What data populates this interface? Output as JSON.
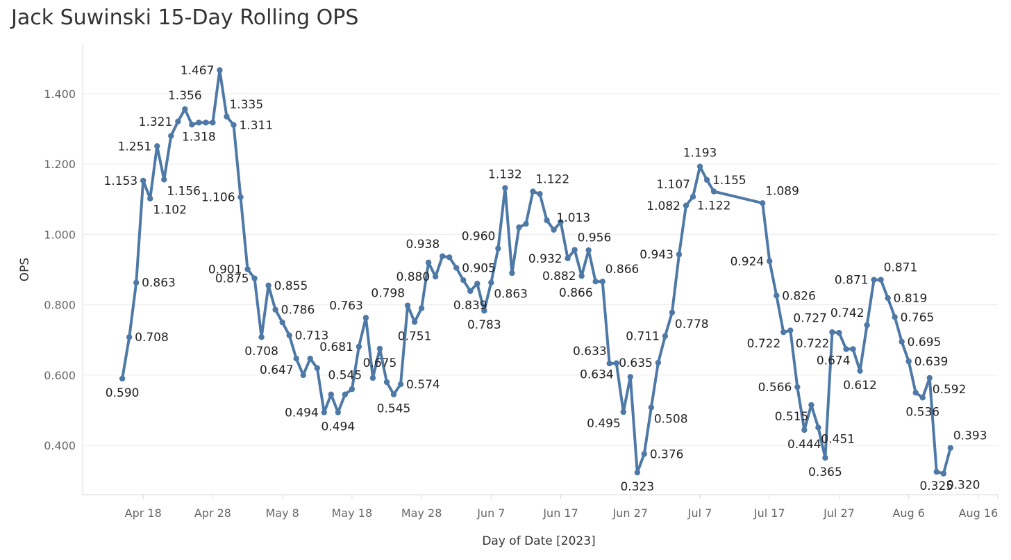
{
  "chart_data": {
    "type": "line",
    "title": "Jack Suwinski 15-Day Rolling OPS",
    "xlabel": "Day of Date [2023]",
    "ylabel": "OPS",
    "ylim": [
      0.26,
      1.54
    ],
    "y_ticks": [
      0.4,
      0.6,
      0.8,
      1.0,
      1.2,
      1.4
    ],
    "y_tick_labels": [
      "0.400",
      "0.600",
      "0.800",
      "1.000",
      "1.200",
      "1.400"
    ],
    "x_ticks": [
      {
        "day": 18,
        "label": "Apr 18"
      },
      {
        "day": 28,
        "label": "Apr 28"
      },
      {
        "day": 38,
        "label": "May 8"
      },
      {
        "day": 48,
        "label": "May 18"
      },
      {
        "day": 58,
        "label": "May 28"
      },
      {
        "day": 68,
        "label": "Jun 7"
      },
      {
        "day": 78,
        "label": "Jun 17"
      },
      {
        "day": 88,
        "label": "Jun 27"
      },
      {
        "day": 98,
        "label": "Jul 7"
      },
      {
        "day": 108,
        "label": "Jul 17"
      },
      {
        "day": 118,
        "label": "Jul 27"
      },
      {
        "day": 128,
        "label": "Aug 6"
      },
      {
        "day": 138,
        "label": "Aug 16"
      }
    ],
    "xlim": [
      9.3,
      140.8
    ],
    "line_color": "#4e79a7",
    "grid": true,
    "series": [
      {
        "name": "OPS",
        "points": [
          {
            "d": 15,
            "v": 0.59,
            "label": "0.590",
            "pos": "below"
          },
          {
            "d": 16,
            "v": 0.708,
            "label": "0.708",
            "pos": "right"
          },
          {
            "d": 17,
            "v": 0.863,
            "label": "0.863",
            "pos": "right"
          },
          {
            "d": 18,
            "v": 1.153,
            "label": "1.153",
            "pos": "left"
          },
          {
            "d": 19,
            "v": 1.102,
            "label": "1.102",
            "pos": "belowright"
          },
          {
            "d": 20,
            "v": 1.251,
            "label": "1.251",
            "pos": "left"
          },
          {
            "d": 21,
            "v": 1.156,
            "label": "1.156",
            "pos": "belowright"
          },
          {
            "d": 22,
            "v": 1.28
          },
          {
            "d": 23,
            "v": 1.321,
            "label": "1.321",
            "pos": "left"
          },
          {
            "d": 24,
            "v": 1.356,
            "label": "1.356",
            "pos": "above"
          },
          {
            "d": 25,
            "v": 1.312
          },
          {
            "d": 26,
            "v": 1.318,
            "label": "1.318",
            "pos": "below"
          },
          {
            "d": 27,
            "v": 1.318
          },
          {
            "d": 28,
            "v": 1.318
          },
          {
            "d": 29,
            "v": 1.467,
            "label": "1.467",
            "pos": "left"
          },
          {
            "d": 30,
            "v": 1.335,
            "label": "1.335",
            "pos": "aboveright"
          },
          {
            "d": 31,
            "v": 1.311,
            "label": "1.311",
            "pos": "right"
          },
          {
            "d": 32,
            "v": 1.106,
            "label": "1.106",
            "pos": "left"
          },
          {
            "d": 33,
            "v": 0.901,
            "label": "0.901",
            "pos": "left"
          },
          {
            "d": 34,
            "v": 0.875,
            "label": "0.875",
            "pos": "left"
          },
          {
            "d": 35,
            "v": 0.708,
            "label": "0.708",
            "pos": "below"
          },
          {
            "d": 36,
            "v": 0.855,
            "label": "0.855",
            "pos": "right"
          },
          {
            "d": 37,
            "v": 0.786,
            "label": "0.786",
            "pos": "right"
          },
          {
            "d": 38,
            "v": 0.75
          },
          {
            "d": 39,
            "v": 0.713,
            "label": "0.713",
            "pos": "right"
          },
          {
            "d": 40,
            "v": 0.647,
            "label": "0.647",
            "pos": "belowleft"
          },
          {
            "d": 41,
            "v": 0.6
          },
          {
            "d": 42,
            "v": 0.647
          },
          {
            "d": 43,
            "v": 0.62
          },
          {
            "d": 44,
            "v": 0.494,
            "label": "0.494",
            "pos": "left"
          },
          {
            "d": 45,
            "v": 0.545
          },
          {
            "d": 46,
            "v": 0.494,
            "label": "0.494",
            "pos": "below"
          },
          {
            "d": 47,
            "v": 0.545,
            "label": "0.545",
            "pos": "abovegap"
          },
          {
            "d": 48,
            "v": 0.56
          },
          {
            "d": 49,
            "v": 0.681,
            "label": "0.681",
            "pos": "left"
          },
          {
            "d": 50,
            "v": 0.763,
            "label": "0.763",
            "pos": "aboveleft"
          },
          {
            "d": 51,
            "v": 0.592
          },
          {
            "d": 52,
            "v": 0.675,
            "label": "0.675",
            "pos": "below"
          },
          {
            "d": 53,
            "v": 0.58
          },
          {
            "d": 54,
            "v": 0.545,
            "label": "0.545",
            "pos": "below"
          },
          {
            "d": 55,
            "v": 0.574,
            "label": "0.574",
            "pos": "right"
          },
          {
            "d": 56,
            "v": 0.798,
            "label": "0.798",
            "pos": "aboveleft"
          },
          {
            "d": 57,
            "v": 0.751,
            "label": "0.751",
            "pos": "below"
          },
          {
            "d": 58,
            "v": 0.79
          },
          {
            "d": 59,
            "v": 0.92
          },
          {
            "d": 60,
            "v": 0.88,
            "label": "0.880",
            "pos": "left"
          },
          {
            "d": 61,
            "v": 0.938,
            "label": "0.938",
            "pos": "aboveleft"
          },
          {
            "d": 62,
            "v": 0.935
          },
          {
            "d": 63,
            "v": 0.905,
            "label": "0.905",
            "pos": "right"
          },
          {
            "d": 64,
            "v": 0.87
          },
          {
            "d": 65,
            "v": 0.839,
            "label": "0.839",
            "pos": "below"
          },
          {
            "d": 66,
            "v": 0.86
          },
          {
            "d": 67,
            "v": 0.783,
            "label": "0.783",
            "pos": "below"
          },
          {
            "d": 68,
            "v": 0.863,
            "label": "0.863",
            "pos": "belowright"
          },
          {
            "d": 69,
            "v": 0.96,
            "label": "0.960",
            "pos": "aboveleft"
          },
          {
            "d": 70,
            "v": 1.132,
            "label": "1.132",
            "pos": "above"
          },
          {
            "d": 71,
            "v": 0.89
          },
          {
            "d": 72,
            "v": 1.02
          },
          {
            "d": 73,
            "v": 1.03
          },
          {
            "d": 74,
            "v": 1.122,
            "label": "1.122",
            "pos": "aboveright"
          },
          {
            "d": 75,
            "v": 1.115
          },
          {
            "d": 76,
            "v": 1.04
          },
          {
            "d": 77,
            "v": 1.013,
            "label": "1.013",
            "pos": "aboveright"
          },
          {
            "d": 78,
            "v": 1.035
          },
          {
            "d": 79,
            "v": 0.932,
            "label": "0.932",
            "pos": "left"
          },
          {
            "d": 80,
            "v": 0.956,
            "label": "0.956",
            "pos": "aboveright"
          },
          {
            "d": 81,
            "v": 0.882,
            "label": "0.882",
            "pos": "left"
          },
          {
            "d": 82,
            "v": 0.955
          },
          {
            "d": 83,
            "v": 0.866,
            "label": "0.866",
            "pos": "belowleft"
          },
          {
            "d": 84,
            "v": 0.866,
            "label": "0.866",
            "pos": "aboveright"
          },
          {
            "d": 85,
            "v": 0.633,
            "label": "0.633",
            "pos": "aboveleft"
          },
          {
            "d": 86,
            "v": 0.634,
            "label": "0.634",
            "pos": "belowleft"
          },
          {
            "d": 87,
            "v": 0.495,
            "label": "0.495",
            "pos": "belowleft"
          },
          {
            "d": 88,
            "v": 0.595
          },
          {
            "d": 89,
            "v": 0.323,
            "label": "0.323",
            "pos": "below"
          },
          {
            "d": 90,
            "v": 0.376,
            "label": "0.376",
            "pos": "right"
          },
          {
            "d": 91,
            "v": 0.508,
            "label": "0.508",
            "pos": "belowright"
          },
          {
            "d": 92,
            "v": 0.635,
            "label": "0.635",
            "pos": "left"
          },
          {
            "d": 93,
            "v": 0.711,
            "label": "0.711",
            "pos": "left"
          },
          {
            "d": 94,
            "v": 0.778,
            "label": "0.778",
            "pos": "belowright"
          },
          {
            "d": 95,
            "v": 0.943,
            "label": "0.943",
            "pos": "left"
          },
          {
            "d": 96,
            "v": 1.082,
            "label": "1.082",
            "pos": "left"
          },
          {
            "d": 97,
            "v": 1.107,
            "label": "1.107",
            "pos": "aboveleft"
          },
          {
            "d": 98,
            "v": 1.193,
            "label": "1.193",
            "pos": "above"
          },
          {
            "d": 99,
            "v": 1.155,
            "label": "1.155",
            "pos": "right"
          },
          {
            "d": 100,
            "v": 1.122,
            "label": "1.122",
            "pos": "below"
          },
          {
            "d": 107,
            "v": 1.089,
            "label": "1.089",
            "pos": "aboveright"
          },
          {
            "d": 108,
            "v": 0.924,
            "label": "0.924",
            "pos": "left"
          },
          {
            "d": 109,
            "v": 0.826,
            "label": "0.826",
            "pos": "right"
          },
          {
            "d": 110,
            "v": 0.722,
            "label": "0.722",
            "pos": "belowleft"
          },
          {
            "d": 111,
            "v": 0.727,
            "label": "0.727",
            "pos": "aboveright"
          },
          {
            "d": 112,
            "v": 0.566,
            "label": "0.566",
            "pos": "left"
          },
          {
            "d": 113,
            "v": 0.444,
            "label": "0.444",
            "pos": "below"
          },
          {
            "d": 114,
            "v": 0.515,
            "label": "0.515",
            "pos": "belowleft"
          },
          {
            "d": 115,
            "v": 0.451,
            "label": "0.451",
            "pos": "belowright"
          },
          {
            "d": 116,
            "v": 0.365,
            "label": "0.365",
            "pos": "below"
          },
          {
            "d": 117,
            "v": 0.722,
            "label": "0.722",
            "pos": "belowleft"
          },
          {
            "d": 118,
            "v": 0.72
          },
          {
            "d": 119,
            "v": 0.674
          },
          {
            "d": 120,
            "v": 0.674,
            "label": "0.674",
            "pos": "belowleft"
          },
          {
            "d": 121,
            "v": 0.612,
            "label": "0.612",
            "pos": "below"
          },
          {
            "d": 122,
            "v": 0.742,
            "label": "0.742",
            "pos": "aboveleft"
          },
          {
            "d": 123,
            "v": 0.871,
            "label": "0.871",
            "pos": "left"
          },
          {
            "d": 124,
            "v": 0.871,
            "label": "0.871",
            "pos": "aboveright"
          },
          {
            "d": 125,
            "v": 0.819,
            "label": "0.819",
            "pos": "right"
          },
          {
            "d": 126,
            "v": 0.765,
            "label": "0.765",
            "pos": "right"
          },
          {
            "d": 127,
            "v": 0.695,
            "label": "0.695",
            "pos": "right"
          },
          {
            "d": 128,
            "v": 0.639,
            "label": "0.639",
            "pos": "right"
          },
          {
            "d": 129,
            "v": 0.55
          },
          {
            "d": 130,
            "v": 0.536,
            "label": "0.536",
            "pos": "below"
          },
          {
            "d": 131,
            "v": 0.592,
            "label": "0.592",
            "pos": "belowright"
          },
          {
            "d": 132,
            "v": 0.325,
            "label": "0.325",
            "pos": "below"
          },
          {
            "d": 133,
            "v": 0.32,
            "label": "0.320",
            "pos": "belowright"
          },
          {
            "d": 134,
            "v": 0.393,
            "label": "0.393",
            "pos": "aboveright"
          }
        ]
      }
    ]
  }
}
